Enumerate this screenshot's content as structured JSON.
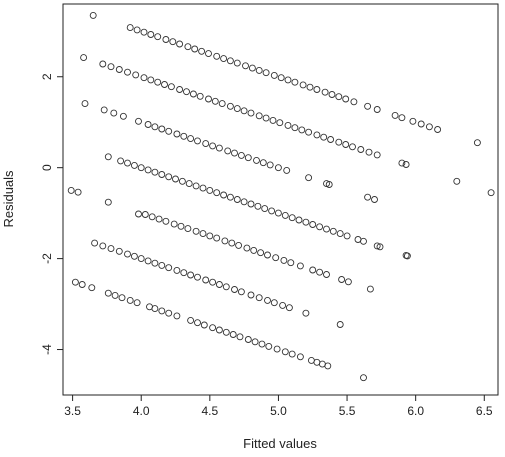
{
  "chart_data": {
    "type": "scatter",
    "title": "",
    "xlabel": "Fitted values",
    "ylabel": "Residuals",
    "xlim": [
      3.43,
      6.6
    ],
    "ylim": [
      -5.0,
      3.6
    ],
    "x_ticks": [
      "3.5",
      "4.0",
      "4.5",
      "5.0",
      "5.5",
      "6.0",
      "6.5"
    ],
    "y_ticks": [
      "-4",
      "-2",
      "0",
      "2"
    ],
    "marker": "open-circle",
    "marker_color": "#333333",
    "frame": true,
    "grid": false,
    "series": [
      {
        "band_offset": 3,
        "points": [
          [
            3.65,
            3.35
          ],
          [
            3.92,
            3.08
          ],
          [
            3.97,
            3.03
          ],
          [
            4.02,
            2.98
          ],
          [
            4.07,
            2.93
          ],
          [
            4.12,
            2.88
          ],
          [
            4.18,
            2.82
          ],
          [
            4.23,
            2.77
          ],
          [
            4.28,
            2.72
          ],
          [
            4.34,
            2.66
          ],
          [
            4.39,
            2.61
          ],
          [
            4.44,
            2.56
          ],
          [
            4.49,
            2.51
          ],
          [
            4.55,
            2.45
          ],
          [
            4.6,
            2.4
          ],
          [
            4.65,
            2.35
          ],
          [
            4.7,
            2.3
          ],
          [
            4.76,
            2.24
          ],
          [
            4.81,
            2.19
          ],
          [
            4.86,
            2.14
          ],
          [
            4.91,
            2.09
          ],
          [
            4.97,
            2.03
          ],
          [
            5.02,
            1.98
          ],
          [
            5.07,
            1.93
          ],
          [
            5.12,
            1.88
          ],
          [
            5.18,
            1.82
          ],
          [
            5.23,
            1.77
          ],
          [
            5.28,
            1.72
          ],
          [
            5.34,
            1.66
          ],
          [
            5.39,
            1.61
          ],
          [
            5.44,
            1.56
          ],
          [
            5.49,
            1.51
          ],
          [
            5.55,
            1.45
          ],
          [
            5.65,
            1.35
          ],
          [
            5.72,
            1.28
          ],
          [
            5.85,
            1.15
          ],
          [
            5.9,
            1.1
          ],
          [
            5.98,
            1.02
          ],
          [
            6.04,
            0.96
          ],
          [
            6.1,
            0.9
          ],
          [
            6.16,
            0.84
          ],
          [
            6.45,
            0.55
          ]
        ]
      },
      {
        "band_offset": 2,
        "points": [
          [
            3.58,
            2.42
          ],
          [
            3.72,
            2.28
          ],
          [
            3.78,
            2.22
          ],
          [
            3.84,
            2.16
          ],
          [
            3.9,
            2.1
          ],
          [
            3.96,
            2.04
          ],
          [
            4.02,
            1.98
          ],
          [
            4.07,
            1.93
          ],
          [
            4.12,
            1.88
          ],
          [
            4.17,
            1.83
          ],
          [
            4.22,
            1.78
          ],
          [
            4.28,
            1.72
          ],
          [
            4.33,
            1.67
          ],
          [
            4.38,
            1.62
          ],
          [
            4.43,
            1.57
          ],
          [
            4.49,
            1.51
          ],
          [
            4.54,
            1.46
          ],
          [
            4.59,
            1.41
          ],
          [
            4.65,
            1.35
          ],
          [
            4.7,
            1.3
          ],
          [
            4.75,
            1.25
          ],
          [
            4.8,
            1.2
          ],
          [
            4.86,
            1.14
          ],
          [
            4.91,
            1.09
          ],
          [
            4.96,
            1.04
          ],
          [
            5.01,
            0.99
          ],
          [
            5.07,
            0.93
          ],
          [
            5.12,
            0.88
          ],
          [
            5.17,
            0.83
          ],
          [
            5.22,
            0.78
          ],
          [
            5.28,
            0.72
          ],
          [
            5.33,
            0.67
          ],
          [
            5.38,
            0.62
          ],
          [
            5.44,
            0.56
          ],
          [
            5.49,
            0.51
          ],
          [
            5.54,
            0.46
          ],
          [
            5.6,
            0.4
          ],
          [
            5.66,
            0.34
          ],
          [
            5.72,
            0.28
          ],
          [
            5.9,
            0.1
          ],
          [
            5.93,
            0.07
          ]
        ]
      },
      {
        "band_offset": 1,
        "points": [
          [
            3.59,
            1.41
          ],
          [
            3.73,
            1.27
          ],
          [
            3.8,
            1.2
          ],
          [
            3.87,
            1.13
          ],
          [
            3.98,
            1.02
          ],
          [
            4.05,
            0.95
          ],
          [
            4.1,
            0.9
          ],
          [
            4.15,
            0.85
          ],
          [
            4.2,
            0.8
          ],
          [
            4.26,
            0.74
          ],
          [
            4.31,
            0.69
          ],
          [
            4.36,
            0.64
          ],
          [
            4.41,
            0.59
          ],
          [
            4.47,
            0.53
          ],
          [
            4.52,
            0.48
          ],
          [
            4.57,
            0.43
          ],
          [
            4.63,
            0.37
          ],
          [
            4.68,
            0.32
          ],
          [
            4.73,
            0.27
          ],
          [
            4.78,
            0.22
          ],
          [
            4.84,
            0.16
          ],
          [
            4.89,
            0.11
          ],
          [
            4.94,
            0.06
          ],
          [
            5.0,
            0.0
          ],
          [
            5.06,
            -0.06
          ],
          [
            5.22,
            -0.22
          ],
          [
            5.35,
            -0.35
          ],
          [
            5.37,
            -0.37
          ],
          [
            5.65,
            -0.65
          ],
          [
            5.7,
            -0.7
          ],
          [
            6.3,
            -0.3
          ]
        ]
      },
      {
        "band_offset": 0,
        "points": [
          [
            3.49,
            -0.5
          ],
          [
            3.54,
            -0.54
          ],
          [
            3.76,
            0.24
          ],
          [
            3.85,
            0.15
          ],
          [
            3.9,
            0.1
          ],
          [
            3.95,
            0.05
          ],
          [
            4.0,
            0.0
          ],
          [
            4.05,
            -0.05
          ],
          [
            4.1,
            -0.1
          ],
          [
            4.15,
            -0.15
          ],
          [
            4.2,
            -0.2
          ],
          [
            4.25,
            -0.25
          ],
          [
            4.3,
            -0.3
          ],
          [
            4.35,
            -0.35
          ],
          [
            4.4,
            -0.4
          ],
          [
            4.45,
            -0.45
          ],
          [
            4.5,
            -0.5
          ],
          [
            4.55,
            -0.55
          ],
          [
            4.6,
            -0.6
          ],
          [
            4.65,
            -0.65
          ],
          [
            4.7,
            -0.7
          ],
          [
            4.75,
            -0.75
          ],
          [
            4.8,
            -0.8
          ],
          [
            4.85,
            -0.85
          ],
          [
            4.9,
            -0.9
          ],
          [
            4.95,
            -0.95
          ],
          [
            5.0,
            -1.0
          ],
          [
            5.05,
            -1.05
          ],
          [
            5.1,
            -1.1
          ],
          [
            5.15,
            -1.15
          ],
          [
            5.2,
            -1.2
          ],
          [
            5.25,
            -1.25
          ],
          [
            5.3,
            -1.3
          ],
          [
            5.35,
            -1.35
          ],
          [
            5.4,
            -1.4
          ],
          [
            5.45,
            -1.45
          ],
          [
            5.5,
            -1.5
          ],
          [
            5.58,
            -1.58
          ],
          [
            5.62,
            -1.62
          ],
          [
            5.72,
            -1.72
          ],
          [
            5.74,
            -1.74
          ],
          [
            5.93,
            -1.93
          ],
          [
            5.94,
            -1.94
          ],
          [
            6.55,
            -0.55
          ],
          [
            3.76,
            -0.76
          ]
        ]
      },
      {
        "band_offset": -1,
        "points": [
          [
            3.98,
            -1.02
          ],
          [
            4.03,
            -1.03
          ],
          [
            4.08,
            -1.08
          ],
          [
            4.13,
            -1.13
          ],
          [
            4.18,
            -1.18
          ],
          [
            4.24,
            -1.24
          ],
          [
            4.29,
            -1.29
          ],
          [
            4.34,
            -1.34
          ],
          [
            4.4,
            -1.4
          ],
          [
            4.45,
            -1.45
          ],
          [
            4.5,
            -1.5
          ],
          [
            4.55,
            -1.55
          ],
          [
            4.61,
            -1.61
          ],
          [
            4.66,
            -1.66
          ],
          [
            4.71,
            -1.71
          ],
          [
            4.77,
            -1.77
          ],
          [
            4.82,
            -1.82
          ],
          [
            4.87,
            -1.87
          ],
          [
            4.92,
            -1.92
          ],
          [
            4.98,
            -1.98
          ],
          [
            5.04,
            -2.04
          ],
          [
            5.09,
            -2.09
          ],
          [
            5.16,
            -2.16
          ],
          [
            5.25,
            -2.25
          ],
          [
            5.3,
            -2.3
          ],
          [
            5.35,
            -2.35
          ]
        ]
      },
      {
        "band_offset": -2,
        "points": [
          [
            3.66,
            -1.66
          ],
          [
            3.72,
            -1.72
          ],
          [
            3.78,
            -1.78
          ],
          [
            3.84,
            -1.84
          ],
          [
            3.9,
            -1.9
          ],
          [
            3.95,
            -1.95
          ],
          [
            4.0,
            -2.0
          ],
          [
            4.05,
            -2.05
          ],
          [
            4.1,
            -2.1
          ],
          [
            4.15,
            -2.15
          ],
          [
            4.2,
            -2.2
          ],
          [
            4.26,
            -2.26
          ],
          [
            4.31,
            -2.31
          ],
          [
            4.36,
            -2.36
          ],
          [
            4.41,
            -2.41
          ],
          [
            4.47,
            -2.47
          ],
          [
            4.52,
            -2.52
          ],
          [
            4.57,
            -2.57
          ],
          [
            4.62,
            -2.62
          ],
          [
            4.68,
            -2.68
          ],
          [
            4.73,
            -2.73
          ],
          [
            4.8,
            -2.8
          ],
          [
            4.86,
            -2.86
          ],
          [
            4.92,
            -2.92
          ],
          [
            4.97,
            -2.97
          ],
          [
            5.03,
            -3.03
          ],
          [
            5.08,
            -3.08
          ],
          [
            5.2,
            -3.2
          ],
          [
            5.46,
            -2.46
          ],
          [
            5.51,
            -2.51
          ],
          [
            5.45,
            -3.45
          ],
          [
            5.67,
            -2.67
          ]
        ]
      },
      {
        "band_offset": -3,
        "points": [
          [
            3.52,
            -2.52
          ],
          [
            3.57,
            -2.57
          ],
          [
            3.64,
            -2.64
          ],
          [
            3.76,
            -2.76
          ],
          [
            3.81,
            -2.81
          ],
          [
            3.86,
            -2.86
          ],
          [
            3.92,
            -2.92
          ],
          [
            3.97,
            -2.97
          ],
          [
            4.06,
            -3.06
          ],
          [
            4.1,
            -3.1
          ],
          [
            4.15,
            -3.15
          ],
          [
            4.2,
            -3.2
          ],
          [
            4.26,
            -3.26
          ],
          [
            4.36,
            -3.36
          ],
          [
            4.41,
            -3.41
          ],
          [
            4.46,
            -3.46
          ],
          [
            4.52,
            -3.52
          ],
          [
            4.57,
            -3.57
          ],
          [
            4.62,
            -3.62
          ],
          [
            4.67,
            -3.67
          ],
          [
            4.72,
            -3.72
          ],
          [
            4.78,
            -3.78
          ],
          [
            4.83,
            -3.83
          ],
          [
            4.88,
            -3.88
          ],
          [
            4.93,
            -3.93
          ],
          [
            4.99,
            -3.99
          ],
          [
            5.05,
            -4.05
          ],
          [
            5.1,
            -4.1
          ],
          [
            5.16,
            -4.16
          ],
          [
            5.24,
            -4.24
          ],
          [
            5.28,
            -4.28
          ],
          [
            5.32,
            -4.32
          ],
          [
            5.36,
            -4.36
          ],
          [
            5.62,
            -4.62
          ]
        ]
      }
    ]
  }
}
